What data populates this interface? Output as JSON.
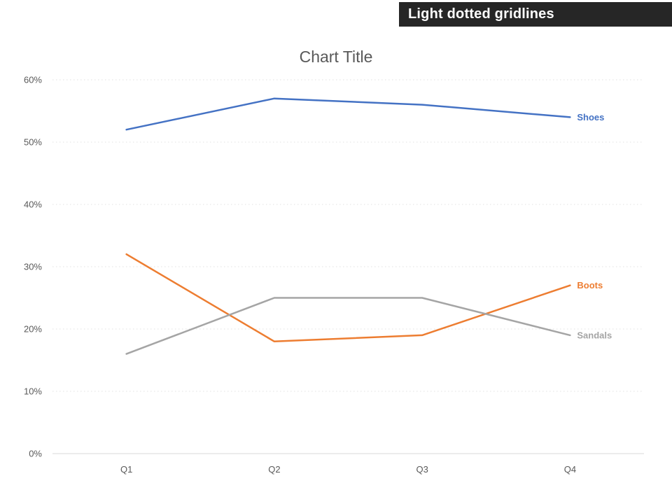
{
  "banner": {
    "label": "Light dotted gridlines",
    "bg_color": "#262626",
    "text_color": "#ffffff"
  },
  "chart_data": {
    "type": "line",
    "title": "Chart Title",
    "categories": [
      "Q1",
      "Q2",
      "Q3",
      "Q4"
    ],
    "series": [
      {
        "name": "Shoes",
        "color": "#4472C4",
        "values": [
          52,
          57,
          56,
          54
        ]
      },
      {
        "name": "Boots",
        "color": "#ED7D31",
        "values": [
          32,
          18,
          19,
          27
        ]
      },
      {
        "name": "Sandals",
        "color": "#A5A5A5",
        "values": [
          16,
          25,
          25,
          19
        ]
      }
    ],
    "y_min": 0,
    "y_max": 60,
    "y_step": 10,
    "y_tick_suffix": "%",
    "y_tick_labels": [
      "0%",
      "10%",
      "20%",
      "30%",
      "40%",
      "50%",
      "60%"
    ],
    "gridline_style": "light-dotted",
    "gridline_color": "#e2e2e2",
    "axis_line_color": "#d9d9d9",
    "legend_position": "end-of-line-labels",
    "xlabel": "",
    "ylabel": ""
  }
}
